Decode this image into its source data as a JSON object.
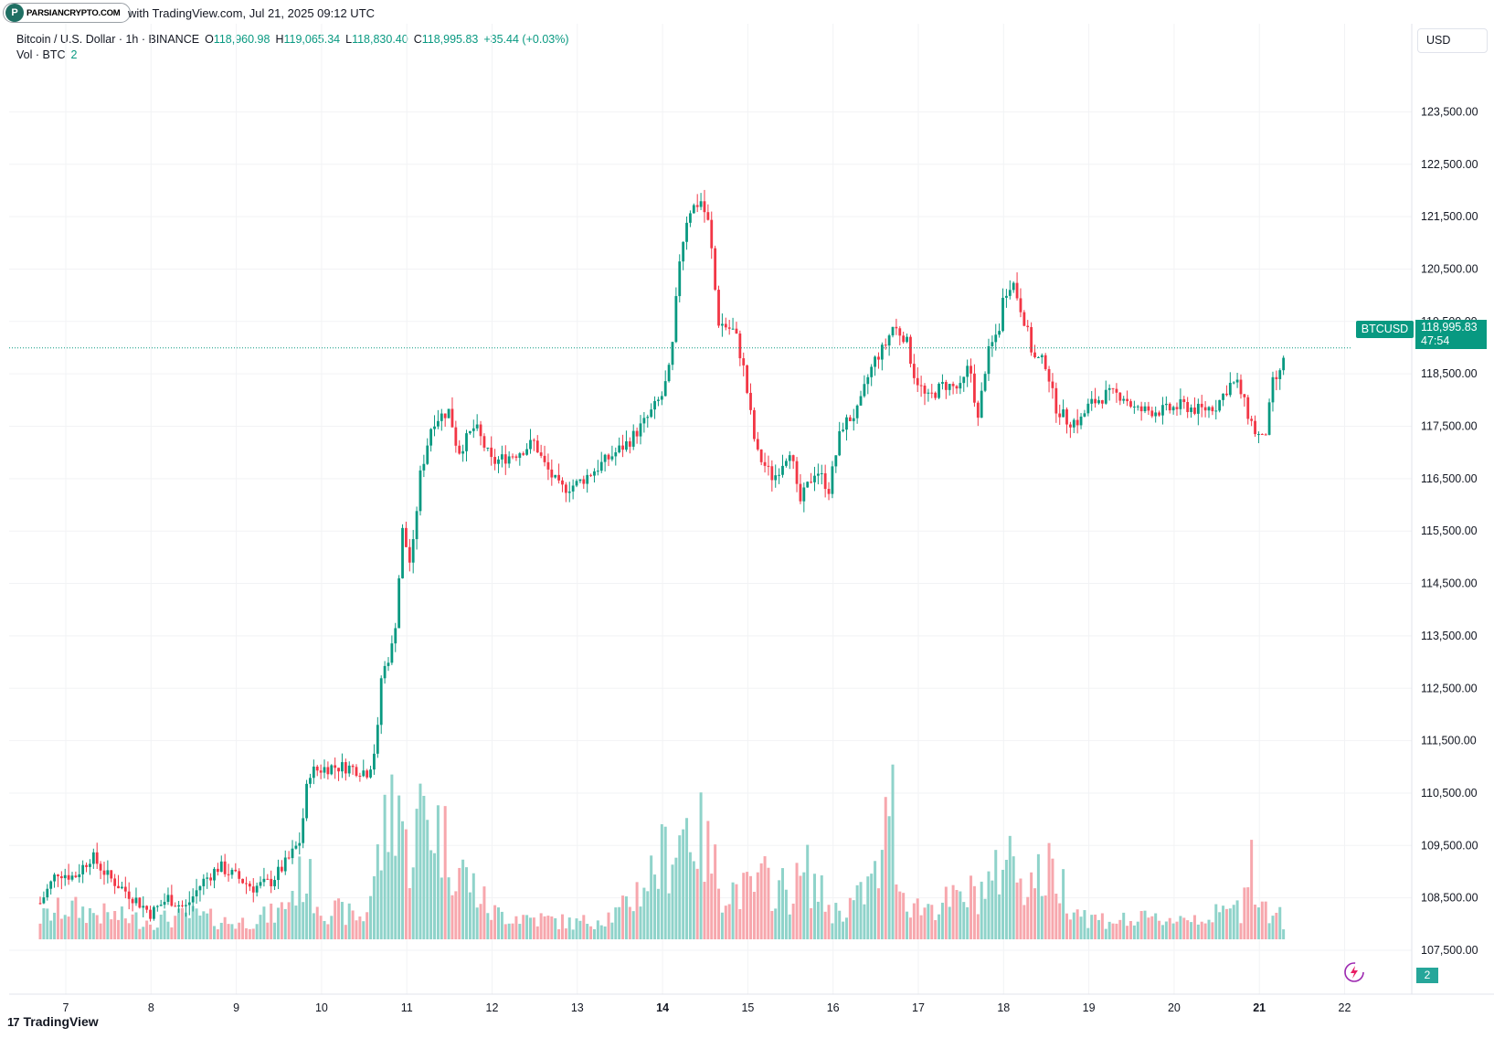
{
  "header": {
    "logo_text": "PARSIANCRYPTO.COM",
    "created_text": "with TradingView.com, Jul 21, 2025 09:12 UTC"
  },
  "legend": {
    "symbol_line": "Bitcoin / U.S. Dollar · 1h · BINANCE",
    "open_label": "O",
    "open": "118,960.98",
    "high_label": "H",
    "high": "119,065.34",
    "low_label": "L",
    "low": "118,830.40",
    "close_label": "C",
    "close": "118,995.83",
    "change": "+35.44 (+0.03%)",
    "vol_label": "Vol · BTC",
    "vol_value": "2"
  },
  "currency": "USD",
  "price_tag": {
    "symbol": "BTCUSD",
    "price": "118,995.83",
    "countdown": "47:54"
  },
  "volume_tag": "2",
  "footer": {
    "brand": "TradingView"
  },
  "colors": {
    "up": "#089981",
    "down": "#f23645",
    "vol_up": "#8fd3ca",
    "vol_down": "#f7a7ad",
    "grid": "#f2f3f5"
  },
  "chart_data": {
    "type": "candlestick",
    "interval": "1h",
    "y_axis": {
      "ticks": [
        107500,
        108500,
        109500,
        110500,
        111500,
        112500,
        113500,
        114500,
        115500,
        116500,
        117500,
        118500,
        119500,
        120500,
        121500,
        122500,
        123500
      ],
      "tick_labels": [
        "107,500.00",
        "108,500.00",
        "109,500.00",
        "110,500.00",
        "111,500.00",
        "112,500.00",
        "113,500.00",
        "114,500.00",
        "115,500.00",
        "116,500.00",
        "117,500.00",
        "118,500.00",
        "119,500.00",
        "120,500.00",
        "121,500.00",
        "122,500.00",
        "123,500.00"
      ]
    },
    "x_axis": {
      "ticks": [
        7,
        8,
        9,
        10,
        11,
        12,
        13,
        14,
        15,
        16,
        17,
        18,
        19,
        20,
        21,
        22
      ],
      "tick_labels": [
        "7",
        "8",
        "9",
        "10",
        "11",
        "12",
        "13",
        "14",
        "15",
        "16",
        "17",
        "18",
        "19",
        "20",
        "21",
        "22"
      ],
      "bold_ticks": [
        "14",
        "21"
      ]
    },
    "last_price": 118995.83,
    "close_path": [
      [
        6.7,
        108400
      ],
      [
        6.9,
        109000
      ],
      [
        7.1,
        108900
      ],
      [
        7.3,
        109300
      ],
      [
        7.5,
        108900
      ],
      [
        7.8,
        108500
      ],
      [
        8.0,
        108200
      ],
      [
        8.2,
        108500
      ],
      [
        8.4,
        108300
      ],
      [
        8.6,
        108800
      ],
      [
        8.8,
        109100
      ],
      [
        9.0,
        108900
      ],
      [
        9.2,
        108700
      ],
      [
        9.4,
        108800
      ],
      [
        9.6,
        109200
      ],
      [
        9.75,
        109600
      ],
      [
        9.85,
        110900
      ],
      [
        10.1,
        111000
      ],
      [
        10.3,
        111000
      ],
      [
        10.55,
        110900
      ],
      [
        10.65,
        111500
      ],
      [
        10.7,
        112700
      ],
      [
        10.85,
        113400
      ],
      [
        10.95,
        115500
      ],
      [
        11.05,
        114800
      ],
      [
        11.15,
        116500
      ],
      [
        11.3,
        117600
      ],
      [
        11.5,
        117800
      ],
      [
        11.6,
        117000
      ],
      [
        11.8,
        117500
      ],
      [
        12.0,
        116800
      ],
      [
        12.3,
        117000
      ],
      [
        12.5,
        117200
      ],
      [
        12.6,
        116800
      ],
      [
        12.8,
        116300
      ],
      [
        13.0,
        116400
      ],
      [
        13.3,
        116800
      ],
      [
        13.6,
        117200
      ],
      [
        13.8,
        117600
      ],
      [
        14.0,
        118100
      ],
      [
        14.1,
        118700
      ],
      [
        14.2,
        120700
      ],
      [
        14.3,
        121600
      ],
      [
        14.45,
        121800
      ],
      [
        14.55,
        121300
      ],
      [
        14.65,
        119500
      ],
      [
        14.85,
        119300
      ],
      [
        14.95,
        118600
      ],
      [
        15.1,
        117000
      ],
      [
        15.3,
        116500
      ],
      [
        15.5,
        117100
      ],
      [
        15.6,
        116000
      ],
      [
        15.8,
        116700
      ],
      [
        15.95,
        116300
      ],
      [
        16.1,
        117500
      ],
      [
        16.3,
        117800
      ],
      [
        16.4,
        118400
      ],
      [
        16.5,
        118800
      ],
      [
        16.6,
        119000
      ],
      [
        16.7,
        119400
      ],
      [
        16.85,
        119200
      ],
      [
        16.95,
        118500
      ],
      [
        17.1,
        118000
      ],
      [
        17.3,
        118300
      ],
      [
        17.5,
        118200
      ],
      [
        17.6,
        118700
      ],
      [
        17.7,
        117600
      ],
      [
        17.8,
        118800
      ],
      [
        17.95,
        119400
      ],
      [
        18.0,
        120000
      ],
      [
        18.1,
        120300
      ],
      [
        18.25,
        119500
      ],
      [
        18.35,
        118800
      ],
      [
        18.5,
        118700
      ],
      [
        18.6,
        117900
      ],
      [
        18.75,
        117600
      ],
      [
        18.9,
        117600
      ],
      [
        19.0,
        117900
      ],
      [
        19.2,
        118100
      ],
      [
        19.4,
        118100
      ],
      [
        19.55,
        117800
      ],
      [
        19.7,
        117800
      ],
      [
        19.9,
        117800
      ],
      [
        20.1,
        117900
      ],
      [
        20.3,
        117800
      ],
      [
        20.5,
        117900
      ],
      [
        20.65,
        118300
      ],
      [
        20.75,
        118300
      ],
      [
        20.85,
        117800
      ],
      [
        20.95,
        117400
      ],
      [
        21.05,
        117200
      ],
      [
        21.1,
        117600
      ],
      [
        21.15,
        118300
      ],
      [
        21.25,
        118500
      ],
      [
        21.3,
        119000
      ]
    ],
    "volume_path": [
      [
        6.7,
        8
      ],
      [
        7.0,
        12
      ],
      [
        7.5,
        9
      ],
      [
        8.0,
        7
      ],
      [
        8.5,
        9
      ],
      [
        9.0,
        6
      ],
      [
        9.5,
        10
      ],
      [
        9.8,
        25
      ],
      [
        10.0,
        12
      ],
      [
        10.5,
        8
      ],
      [
        10.8,
        48
      ],
      [
        10.9,
        60
      ],
      [
        11.0,
        30
      ],
      [
        11.2,
        50
      ],
      [
        11.4,
        40
      ],
      [
        11.6,
        28
      ],
      [
        12.0,
        10
      ],
      [
        12.5,
        8
      ],
      [
        13.0,
        6
      ],
      [
        13.5,
        10
      ],
      [
        13.8,
        22
      ],
      [
        14.1,
        35
      ],
      [
        14.3,
        45
      ],
      [
        14.5,
        35
      ],
      [
        14.7,
        20
      ],
      [
        15.0,
        18
      ],
      [
        15.2,
        22
      ],
      [
        15.5,
        18
      ],
      [
        15.7,
        25
      ],
      [
        16.0,
        10
      ],
      [
        16.3,
        15
      ],
      [
        16.6,
        28
      ],
      [
        16.65,
        66
      ],
      [
        16.8,
        18
      ],
      [
        17.0,
        12
      ],
      [
        17.5,
        15
      ],
      [
        17.9,
        22
      ],
      [
        18.0,
        34
      ],
      [
        18.3,
        22
      ],
      [
        18.6,
        26
      ],
      [
        18.8,
        14
      ],
      [
        19.0,
        8
      ],
      [
        19.5,
        7
      ],
      [
        20.0,
        8
      ],
      [
        20.5,
        9
      ],
      [
        20.8,
        12
      ],
      [
        20.9,
        40
      ],
      [
        21.0,
        12
      ],
      [
        21.2,
        10
      ],
      [
        21.3,
        6
      ]
    ]
  }
}
